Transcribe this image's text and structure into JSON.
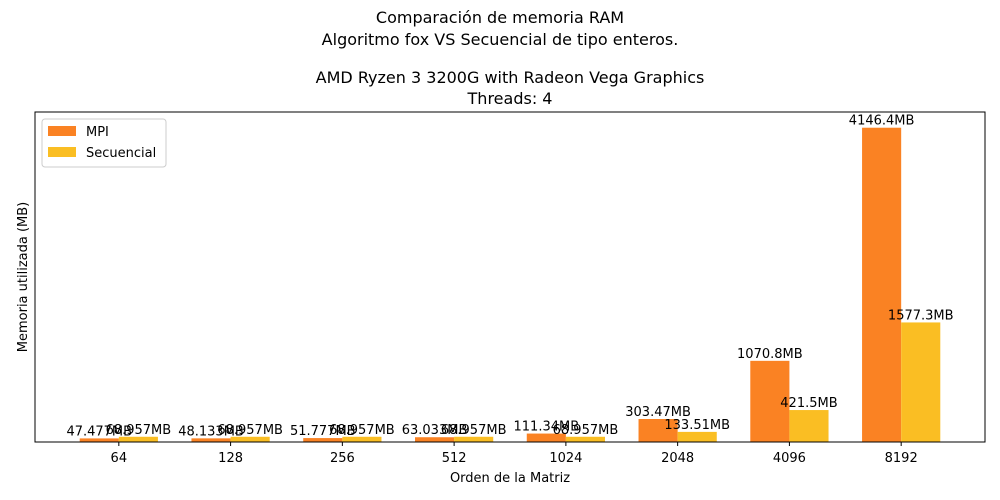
{
  "title_lines": [
    "Comparación de memoria RAM",
    "Algoritmo fox VS Secuencial de tipo enteros.",
    "",
    "AMD Ryzen 3 3200G with Radeon Vega Graphics",
    "Threads: 4"
  ],
  "colors": {
    "mpi": "#fa8223",
    "secuencial": "#fabe23"
  },
  "chart_data": {
    "type": "bar",
    "title": "Comparación de memoria RAM\nAlgoritmo fox VS Secuencial de tipo enteros.\n\nAMD Ryzen 3 3200G with Radeon Vega Graphics\nThreads: 4",
    "xlabel": "Orden de la Matriz",
    "ylabel": "Memoria utilizada (MB)",
    "categories": [
      "64",
      "128",
      "256",
      "512",
      "1024",
      "2048",
      "4096",
      "8192"
    ],
    "series": [
      {
        "name": "MPI",
        "values": [
          47.477,
          48.133,
          51.777,
          63.033,
          111.34,
          303.47,
          1070.8,
          4146.4
        ],
        "labels": [
          "47.477MB",
          "48.133MB",
          "51.777MB",
          "63.033MB",
          "111.34MB",
          "303.47MB",
          "1070.8MB",
          "4146.4MB"
        ]
      },
      {
        "name": "Secuencial",
        "values": [
          68.957,
          68.957,
          68.957,
          68.957,
          68.957,
          133.51,
          421.5,
          1577.3
        ],
        "labels": [
          "68.957MB",
          "68.957MB",
          "68.957MB",
          "68.957MB",
          "68.957MB",
          "133.51MB",
          "421.5MB",
          "1577.3MB"
        ]
      }
    ],
    "ylim": [
      0,
      4353.7
    ],
    "y_ticks_shown": false,
    "grid": false,
    "legend_position": "top-left"
  }
}
